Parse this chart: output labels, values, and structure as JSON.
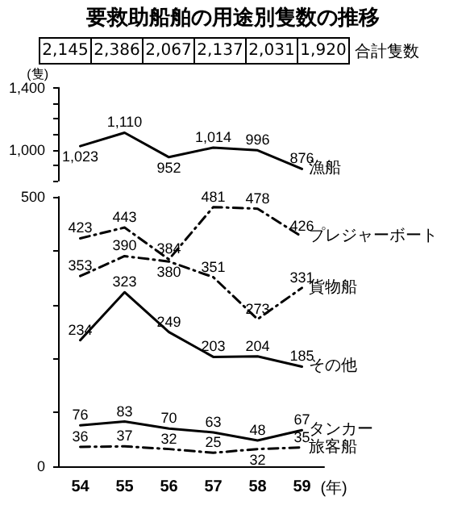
{
  "chart_data": [
    {
      "type": "line",
      "title": "要救助船舶の用途別隻数の推移",
      "annotations": [
        "2,145",
        "2,386",
        "2,067",
        "2,137",
        "2,031",
        "1,920",
        "合計隻数"
      ],
      "ylabel": "(隻)",
      "categories": [
        "54",
        "55",
        "56",
        "57",
        "58",
        "59"
      ],
      "series": [
        {
          "name": "漁船",
          "color": "#000000",
          "line_style": "solid",
          "values": [
            1023,
            1110,
            952,
            1014,
            996,
            876
          ],
          "value_labels": [
            "1,023",
            "1,110",
            "952",
            "1,014",
            "996",
            "876"
          ]
        }
      ],
      "ylim": [
        800,
        1400
      ],
      "yticks": [
        {
          "value": 800,
          "label": null
        },
        {
          "value": 900,
          "label": null
        },
        {
          "value": 1000,
          "label": "1,000"
        },
        {
          "value": 1100,
          "label": null
        },
        {
          "value": 1200,
          "label": null
        },
        {
          "value": 1300,
          "label": null
        },
        {
          "value": 1400,
          "label": "1,400"
        }
      ],
      "tick_labels": "y",
      "marker": "none"
    },
    {
      "type": "line",
      "xlabel": "(年)",
      "categories": [
        "54",
        "55",
        "56",
        "57",
        "58",
        "59"
      ],
      "series": [
        {
          "name": "プレジャーボート",
          "color": "#000000",
          "line_style": "dashed",
          "values": [
            423,
            443,
            384,
            481,
            478,
            426
          ]
        },
        {
          "name": "貨物船",
          "color": "#000000",
          "line_style": "dashed",
          "values": [
            353,
            390,
            380,
            351,
            273,
            331
          ]
        },
        {
          "name": "その他",
          "color": "#000000",
          "line_style": "solid",
          "values": [
            234,
            323,
            249,
            203,
            204,
            185
          ]
        },
        {
          "name": "タンカー",
          "color": "#000000",
          "line_style": "solid",
          "values": [
            76,
            83,
            70,
            63,
            48,
            67
          ]
        },
        {
          "name": "旅客船",
          "color": "#000000",
          "line_style": "dashed",
          "values": [
            36,
            37,
            32,
            25,
            32,
            35
          ]
        }
      ],
      "ylim": [
        0,
        500
      ],
      "yticks": [
        0,
        {
          "value": 100,
          "label": null
        },
        {
          "value": 200,
          "label": null
        },
        {
          "value": 300,
          "label": null
        },
        {
          "value": 400,
          "label": null
        },
        500
      ],
      "data_labels": true,
      "marker": "none"
    }
  ]
}
